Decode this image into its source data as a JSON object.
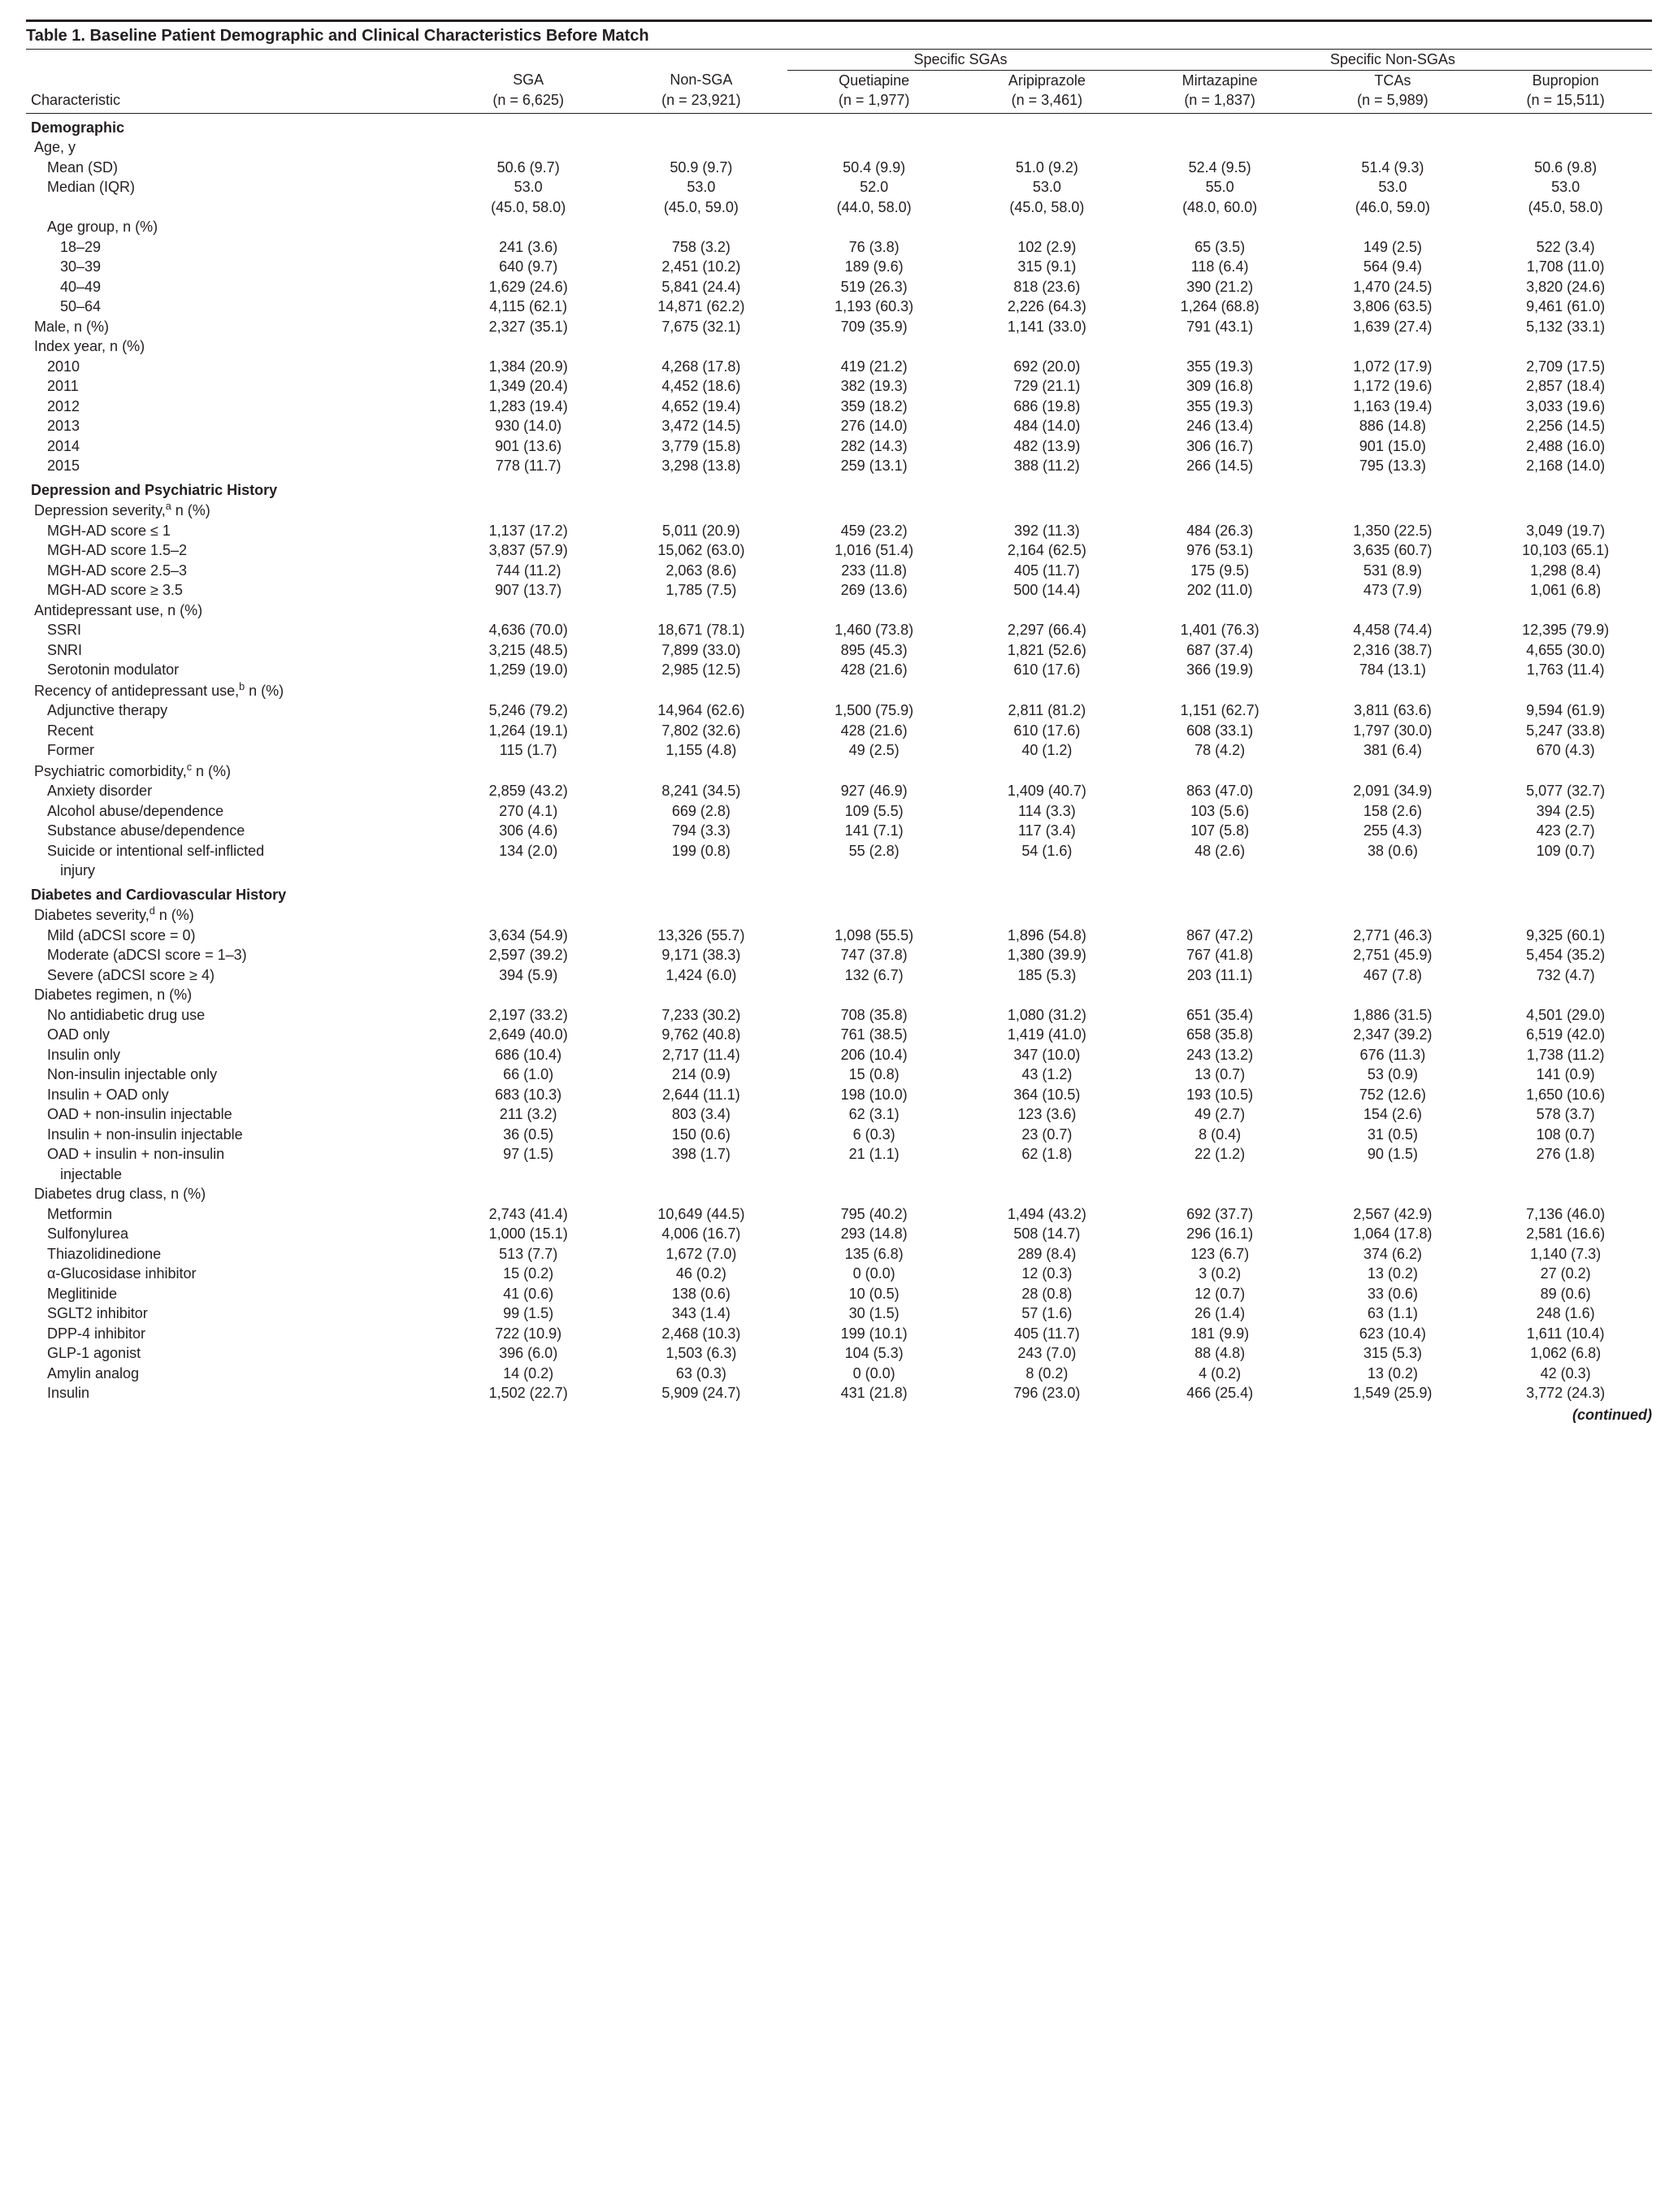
{
  "title": "Table 1. Baseline Patient Demographic and Clinical Characteristics Before Match",
  "spanners": {
    "sgas": "Specific SGAs",
    "nonsgas": "Specific Non-SGAs"
  },
  "cols": {
    "char": "Characteristic",
    "sga": {
      "l1": "SGA",
      "l2": "(n = 6,625)"
    },
    "nonsga": {
      "l1": "Non-SGA",
      "l2": "(n = 23,921)"
    },
    "quet": {
      "l1": "Quetiapine",
      "l2": "(n = 1,977)"
    },
    "arip": {
      "l1": "Aripiprazole",
      "l2": "(n = 3,461)"
    },
    "mirt": {
      "l1": "Mirtazapine",
      "l2": "(n = 1,837)"
    },
    "tcas": {
      "l1": "TCAs",
      "l2": "(n = 5,989)"
    },
    "bup": {
      "l1": "Bupropion",
      "l2": "(n = 15,511)"
    }
  },
  "sections": {
    "demo": "Demographic",
    "dep": "Depression and Psychiatric History",
    "diab": "Diabetes and Cardiovascular History"
  },
  "rows": {
    "age": {
      "label": "Age, y"
    },
    "age_mean": {
      "label": "Mean (SD)",
      "v": [
        "50.6 (9.7)",
        "50.9 (9.7)",
        "50.4 (9.9)",
        "51.0 (9.2)",
        "52.4 (9.5)",
        "51.4 (9.3)",
        "50.6 (9.8)"
      ]
    },
    "age_med": {
      "label": "Median (IQR)",
      "v": [
        "53.0",
        "53.0",
        "52.0",
        "53.0",
        "55.0",
        "53.0",
        "53.0"
      ]
    },
    "age_med2": {
      "v": [
        "(45.0, 58.0)",
        "(45.0, 59.0)",
        "(44.0, 58.0)",
        "(45.0, 58.0)",
        "(48.0, 60.0)",
        "(46.0, 59.0)",
        "(45.0, 58.0)"
      ]
    },
    "age_grp": {
      "label": "Age group, n (%)"
    },
    "a18": {
      "label": "18–29",
      "v": [
        "241 (3.6)",
        "758 (3.2)",
        "76 (3.8)",
        "102 (2.9)",
        "65 (3.5)",
        "149 (2.5)",
        "522 (3.4)"
      ]
    },
    "a30": {
      "label": "30–39",
      "v": [
        "640 (9.7)",
        "2,451 (10.2)",
        "189 (9.6)",
        "315 (9.1)",
        "118 (6.4)",
        "564 (9.4)",
        "1,708 (11.0)"
      ]
    },
    "a40": {
      "label": "40–49",
      "v": [
        "1,629 (24.6)",
        "5,841 (24.4)",
        "519 (26.3)",
        "818 (23.6)",
        "390 (21.2)",
        "1,470 (24.5)",
        "3,820 (24.6)"
      ]
    },
    "a50": {
      "label": "50–64",
      "v": [
        "4,115 (62.1)",
        "14,871 (62.2)",
        "1,193 (60.3)",
        "2,226 (64.3)",
        "1,264 (68.8)",
        "3,806 (63.5)",
        "9,461 (61.0)"
      ]
    },
    "male": {
      "label": "Male, n (%)",
      "v": [
        "2,327 (35.1)",
        "7,675 (32.1)",
        "709 (35.9)",
        "1,141 (33.0)",
        "791 (43.1)",
        "1,639 (27.4)",
        "5,132 (33.1)"
      ]
    },
    "idx": {
      "label": "Index year, n (%)"
    },
    "y2010": {
      "label": "2010",
      "v": [
        "1,384 (20.9)",
        "4,268 (17.8)",
        "419 (21.2)",
        "692 (20.0)",
        "355 (19.3)",
        "1,072 (17.9)",
        "2,709 (17.5)"
      ]
    },
    "y2011": {
      "label": "2011",
      "v": [
        "1,349 (20.4)",
        "4,452 (18.6)",
        "382 (19.3)",
        "729 (21.1)",
        "309 (16.8)",
        "1,172 (19.6)",
        "2,857 (18.4)"
      ]
    },
    "y2012": {
      "label": "2012",
      "v": [
        "1,283 (19.4)",
        "4,652 (19.4)",
        "359 (18.2)",
        "686 (19.8)",
        "355 (19.3)",
        "1,163 (19.4)",
        "3,033 (19.6)"
      ]
    },
    "y2013": {
      "label": "2013",
      "v": [
        "930 (14.0)",
        "3,472 (14.5)",
        "276 (14.0)",
        "484 (14.0)",
        "246 (13.4)",
        "886 (14.8)",
        "2,256 (14.5)"
      ]
    },
    "y2014": {
      "label": "2014",
      "v": [
        "901 (13.6)",
        "3,779 (15.8)",
        "282 (14.3)",
        "482 (13.9)",
        "306 (16.7)",
        "901 (15.0)",
        "2,488 (16.0)"
      ]
    },
    "y2015": {
      "label": "2015",
      "v": [
        "778 (11.7)",
        "3,298 (13.8)",
        "259 (13.1)",
        "388 (11.2)",
        "266 (14.5)",
        "795 (13.3)",
        "2,168 (14.0)"
      ]
    },
    "depsev": {
      "label_pre": "Depression severity,",
      "label_post": " n (%)",
      "sup": "a"
    },
    "mgh1": {
      "label": "MGH-AD score ≤ 1",
      "v": [
        "1,137 (17.2)",
        "5,011 (20.9)",
        "459 (23.2)",
        "392 (11.3)",
        "484 (26.3)",
        "1,350 (22.5)",
        "3,049 (19.7)"
      ]
    },
    "mgh2": {
      "label": "MGH-AD score 1.5–2",
      "v": [
        "3,837 (57.9)",
        "15,062 (63.0)",
        "1,016 (51.4)",
        "2,164 (62.5)",
        "976 (53.1)",
        "3,635 (60.7)",
        "10,103 (65.1)"
      ]
    },
    "mgh3": {
      "label": "MGH-AD score 2.5–3",
      "v": [
        "744 (11.2)",
        "2,063 (8.6)",
        "233 (11.8)",
        "405 (11.7)",
        "175 (9.5)",
        "531 (8.9)",
        "1,298 (8.4)"
      ]
    },
    "mgh4": {
      "label": "MGH-AD score ≥ 3.5",
      "v": [
        "907 (13.7)",
        "1,785 (7.5)",
        "269 (13.6)",
        "500 (14.4)",
        "202 (11.0)",
        "473 (7.9)",
        "1,061 (6.8)"
      ]
    },
    "aduse": {
      "label": "Antidepressant use, n (%)"
    },
    "ssri": {
      "label": "SSRI",
      "v": [
        "4,636 (70.0)",
        "18,671 (78.1)",
        "1,460 (73.8)",
        "2,297 (66.4)",
        "1,401 (76.3)",
        "4,458 (74.4)",
        "12,395 (79.9)"
      ]
    },
    "snri": {
      "label": "SNRI",
      "v": [
        "3,215 (48.5)",
        "7,899 (33.0)",
        "895 (45.3)",
        "1,821 (52.6)",
        "687 (37.4)",
        "2,316 (38.7)",
        "4,655 (30.0)"
      ]
    },
    "sero": {
      "label": "Serotonin modulator",
      "v": [
        "1,259 (19.0)",
        "2,985 (12.5)",
        "428 (21.6)",
        "610 (17.6)",
        "366 (19.9)",
        "784 (13.1)",
        "1,763 (11.4)"
      ]
    },
    "recad": {
      "label_pre": "Recency of antidepressant use,",
      "label_post": " n (%)",
      "sup": "b"
    },
    "adj": {
      "label": "Adjunctive therapy",
      "v": [
        "5,246 (79.2)",
        "14,964 (62.6)",
        "1,500 (75.9)",
        "2,811 (81.2)",
        "1,151 (62.7)",
        "3,811 (63.6)",
        "9,594 (61.9)"
      ]
    },
    "recent": {
      "label": "Recent",
      "v": [
        "1,264 (19.1)",
        "7,802 (32.6)",
        "428 (21.6)",
        "610 (17.6)",
        "608 (33.1)",
        "1,797 (30.0)",
        "5,247 (33.8)"
      ]
    },
    "former": {
      "label": "Former",
      "v": [
        "115 (1.7)",
        "1,155 (4.8)",
        "49 (2.5)",
        "40 (1.2)",
        "78 (4.2)",
        "381 (6.4)",
        "670 (4.3)"
      ]
    },
    "psycom": {
      "label_pre": "Psychiatric comorbidity,",
      "label_post": " n (%)",
      "sup": "c"
    },
    "anx": {
      "label": "Anxiety disorder",
      "v": [
        "2,859 (43.2)",
        "8,241 (34.5)",
        "927 (46.9)",
        "1,409 (40.7)",
        "863 (47.0)",
        "2,091 (34.9)",
        "5,077 (32.7)"
      ]
    },
    "alc": {
      "label": "Alcohol abuse/dependence",
      "v": [
        "270 (4.1)",
        "669 (2.8)",
        "109 (5.5)",
        "114 (3.3)",
        "103 (5.6)",
        "158 (2.6)",
        "394 (2.5)"
      ]
    },
    "sub": {
      "label": "Substance abuse/dependence",
      "v": [
        "306 (4.6)",
        "794 (3.3)",
        "141 (7.1)",
        "117 (3.4)",
        "107 (5.8)",
        "255 (4.3)",
        "423 (2.7)"
      ]
    },
    "sui": {
      "label1": "Suicide or intentional self-inflicted",
      "label2": "injury",
      "v": [
        "134 (2.0)",
        "199 (0.8)",
        "55 (2.8)",
        "54 (1.6)",
        "48 (2.6)",
        "38 (0.6)",
        "109 (0.7)"
      ]
    },
    "diabsev": {
      "label_pre": "Diabetes severity,",
      "label_post": " n (%)",
      "sup": "d"
    },
    "mild": {
      "label": "Mild (aDCSI score = 0)",
      "v": [
        "3,634 (54.9)",
        "13,326 (55.7)",
        "1,098 (55.5)",
        "1,896 (54.8)",
        "867 (47.2)",
        "2,771 (46.3)",
        "9,325 (60.1)"
      ]
    },
    "mod": {
      "label": "Moderate (aDCSI score = 1–3)",
      "v": [
        "2,597 (39.2)",
        "9,171 (38.3)",
        "747 (37.8)",
        "1,380 (39.9)",
        "767 (41.8)",
        "2,751 (45.9)",
        "5,454 (35.2)"
      ]
    },
    "sev": {
      "label": "Severe (aDCSI score ≥ 4)",
      "v": [
        "394 (5.9)",
        "1,424 (6.0)",
        "132 (6.7)",
        "185 (5.3)",
        "203 (11.1)",
        "467 (7.8)",
        "732 (4.7)"
      ]
    },
    "diabreg": {
      "label": "Diabetes regimen, n (%)"
    },
    "noad": {
      "label": "No antidiabetic drug use",
      "v": [
        "2,197 (33.2)",
        "7,233 (30.2)",
        "708 (35.8)",
        "1,080 (31.2)",
        "651 (35.4)",
        "1,886 (31.5)",
        "4,501 (29.0)"
      ]
    },
    "oad": {
      "label": "OAD only",
      "v": [
        "2,649 (40.0)",
        "9,762 (40.8)",
        "761 (38.5)",
        "1,419 (41.0)",
        "658 (35.8)",
        "2,347 (39.2)",
        "6,519 (42.0)"
      ]
    },
    "ins": {
      "label": "Insulin only",
      "v": [
        "686 (10.4)",
        "2,717 (11.4)",
        "206 (10.4)",
        "347 (10.0)",
        "243 (13.2)",
        "676 (11.3)",
        "1,738 (11.2)"
      ]
    },
    "nii": {
      "label": "Non-insulin injectable only",
      "v": [
        "66 (1.0)",
        "214 (0.9)",
        "15 (0.8)",
        "43 (1.2)",
        "13 (0.7)",
        "53 (0.9)",
        "141 (0.9)"
      ]
    },
    "ioad": {
      "label": "Insulin + OAD only",
      "v": [
        "683 (10.3)",
        "2,644 (11.1)",
        "198 (10.0)",
        "364 (10.5)",
        "193 (10.5)",
        "752 (12.6)",
        "1,650 (10.6)"
      ]
    },
    "oadni": {
      "label": "OAD + non-insulin injectable",
      "v": [
        "211 (3.2)",
        "803 (3.4)",
        "62 (3.1)",
        "123 (3.6)",
        "49 (2.7)",
        "154 (2.6)",
        "578 (3.7)"
      ]
    },
    "ini": {
      "label": "Insulin + non-insulin injectable",
      "v": [
        "36 (0.5)",
        "150 (0.6)",
        "6 (0.3)",
        "23 (0.7)",
        "8 (0.4)",
        "31 (0.5)",
        "108 (0.7)"
      ]
    },
    "oadini": {
      "label1": "OAD + insulin + non-insulin",
      "label2": "injectable",
      "v": [
        "97 (1.5)",
        "398 (1.7)",
        "21 (1.1)",
        "62 (1.8)",
        "22 (1.2)",
        "90 (1.5)",
        "276 (1.8)"
      ]
    },
    "ddclass": {
      "label": "Diabetes drug class, n (%)"
    },
    "met": {
      "label": "Metformin",
      "v": [
        "2,743 (41.4)",
        "10,649 (44.5)",
        "795 (40.2)",
        "1,494 (43.2)",
        "692 (37.7)",
        "2,567 (42.9)",
        "7,136 (46.0)"
      ]
    },
    "sulf": {
      "label": "Sulfonylurea",
      "v": [
        "1,000 (15.1)",
        "4,006 (16.7)",
        "293 (14.8)",
        "508 (14.7)",
        "296 (16.1)",
        "1,064 (17.8)",
        "2,581 (16.6)"
      ]
    },
    "thia": {
      "label": "Thiazolidinedione",
      "v": [
        "513 (7.7)",
        "1,672 (7.0)",
        "135 (6.8)",
        "289 (8.4)",
        "123 (6.7)",
        "374 (6.2)",
        "1,140 (7.3)"
      ]
    },
    "agluc": {
      "label": "α-Glucosidase inhibitor",
      "v": [
        "15 (0.2)",
        "46 (0.2)",
        "0 (0.0)",
        "12 (0.3)",
        "3 (0.2)",
        "13 (0.2)",
        "27 (0.2)"
      ]
    },
    "megl": {
      "label": "Meglitinide",
      "v": [
        "41 (0.6)",
        "138 (0.6)",
        "10 (0.5)",
        "28 (0.8)",
        "12 (0.7)",
        "33 (0.6)",
        "89 (0.6)"
      ]
    },
    "sglt2": {
      "label": "SGLT2 inhibitor",
      "v": [
        "99 (1.5)",
        "343 (1.4)",
        "30 (1.5)",
        "57 (1.6)",
        "26 (1.4)",
        "63 (1.1)",
        "248 (1.6)"
      ]
    },
    "dpp4": {
      "label": "DPP-4 inhibitor",
      "v": [
        "722 (10.9)",
        "2,468 (10.3)",
        "199 (10.1)",
        "405 (11.7)",
        "181 (9.9)",
        "623 (10.4)",
        "1,611 (10.4)"
      ]
    },
    "glp1": {
      "label": "GLP-1 agonist",
      "v": [
        "396 (6.0)",
        "1,503 (6.3)",
        "104 (5.3)",
        "243 (7.0)",
        "88 (4.8)",
        "315 (5.3)",
        "1,062 (6.8)"
      ]
    },
    "amyl": {
      "label": "Amylin analog",
      "v": [
        "14 (0.2)",
        "63 (0.3)",
        "0 (0.0)",
        "8 (0.2)",
        "4 (0.2)",
        "13 (0.2)",
        "42 (0.3)"
      ]
    },
    "insulin": {
      "label": "Insulin",
      "v": [
        "1,502 (22.7)",
        "5,909 (24.7)",
        "431 (21.8)",
        "796 (23.0)",
        "466 (25.4)",
        "1,549 (25.9)",
        "3,772 (24.3)"
      ]
    }
  },
  "continued": "(continued)"
}
